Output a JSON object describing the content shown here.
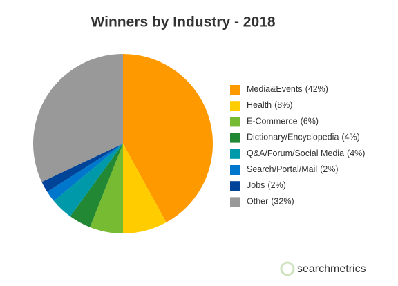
{
  "chart_data": {
    "type": "pie",
    "title": "Winners by Industry - 2018",
    "categories": [
      "Media&Events",
      "Health",
      "E-Commerce",
      "Dictionary/Encyclopedia",
      "Q&A/Forum/Social Media",
      "Search/Portal/Mail",
      "Jobs",
      "Other"
    ],
    "values": [
      42,
      8,
      6,
      4,
      4,
      2,
      2,
      32
    ],
    "value_labels": [
      "(42%)",
      "(8%)",
      "(6%)",
      "(4%)",
      "(4%)",
      "(2%)",
      "(2%)",
      "(32%)"
    ],
    "colors": [
      "#ff9900",
      "#ffcc00",
      "#77bb33",
      "#228833",
      "#0099aa",
      "#0077cc",
      "#004499",
      "#999999"
    ],
    "legend": "right",
    "watermark": "searchmetrics"
  }
}
